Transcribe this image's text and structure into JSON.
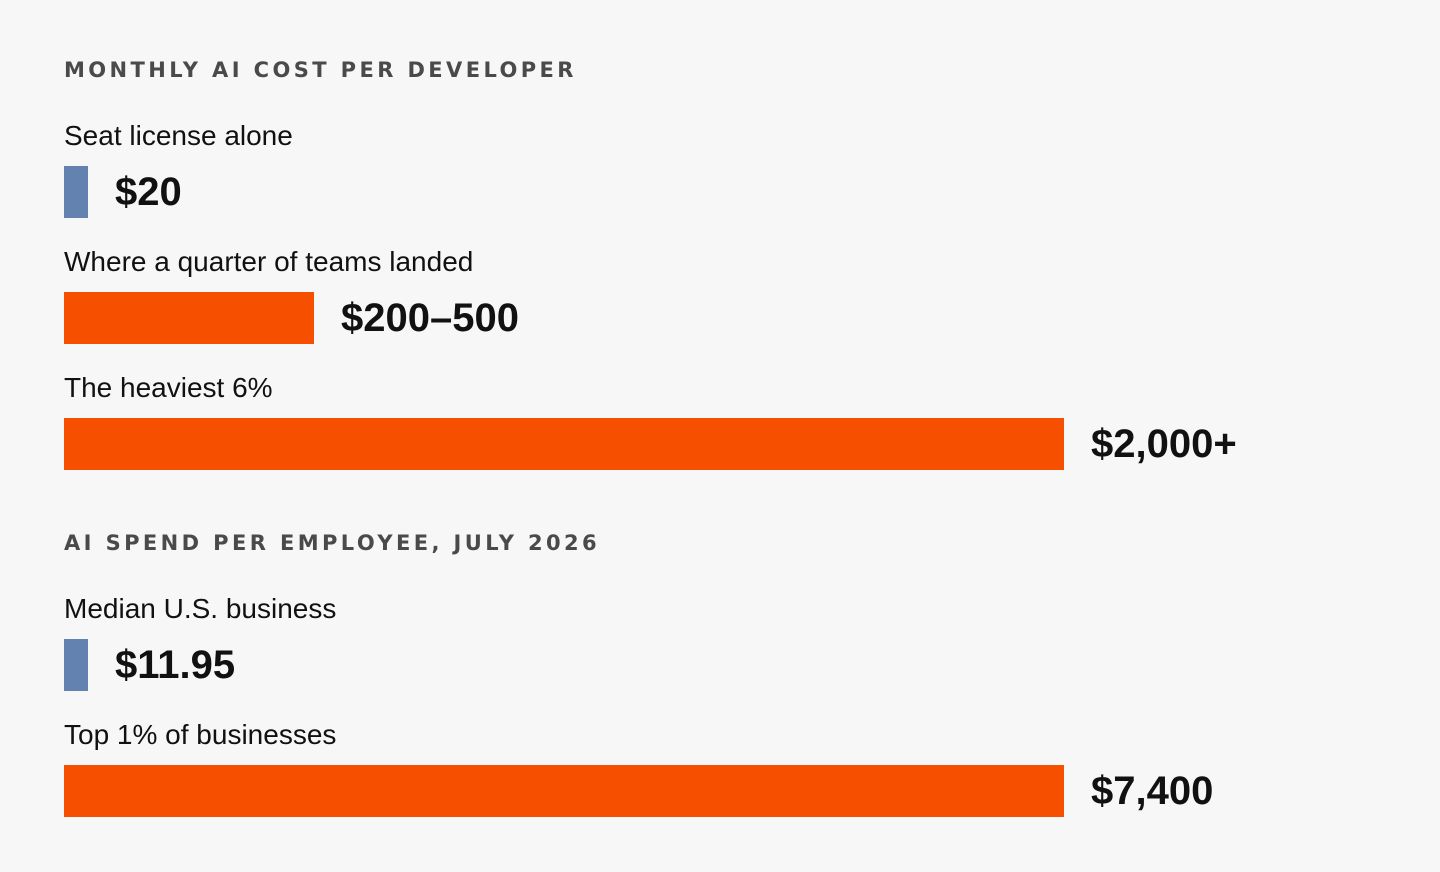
{
  "colors": {
    "background": "#f7f7f7",
    "bar_small": "#6482b0",
    "bar_accent": "#f74f00",
    "title_text": "#4a4a4a",
    "body_text": "#111111"
  },
  "chart_data": [
    {
      "type": "bar",
      "orientation": "horizontal",
      "title": "MONTHLY AI COST PER DEVELOPER",
      "unit": "USD per month",
      "categories": [
        "Seat license alone",
        "Where a quarter of teams landed",
        "The heaviest 6%"
      ],
      "values": [
        20,
        500,
        2000
      ],
      "value_labels": [
        "$20",
        "$200–500",
        "$2,000+"
      ],
      "bar_colors": [
        "#6482b0",
        "#f74f00",
        "#f74f00"
      ],
      "xlim": [
        0,
        2000
      ]
    },
    {
      "type": "bar",
      "orientation": "horizontal",
      "title": "AI SPEND PER EMPLOYEE, JULY 2026",
      "unit": "USD",
      "categories": [
        "Median U.S. business",
        "Top 1% of businesses"
      ],
      "values": [
        11.95,
        7400
      ],
      "value_labels": [
        "$11.95",
        "$7,400"
      ],
      "bar_colors": [
        "#6482b0",
        "#f74f00"
      ],
      "xlim": [
        0,
        7400
      ]
    }
  ]
}
